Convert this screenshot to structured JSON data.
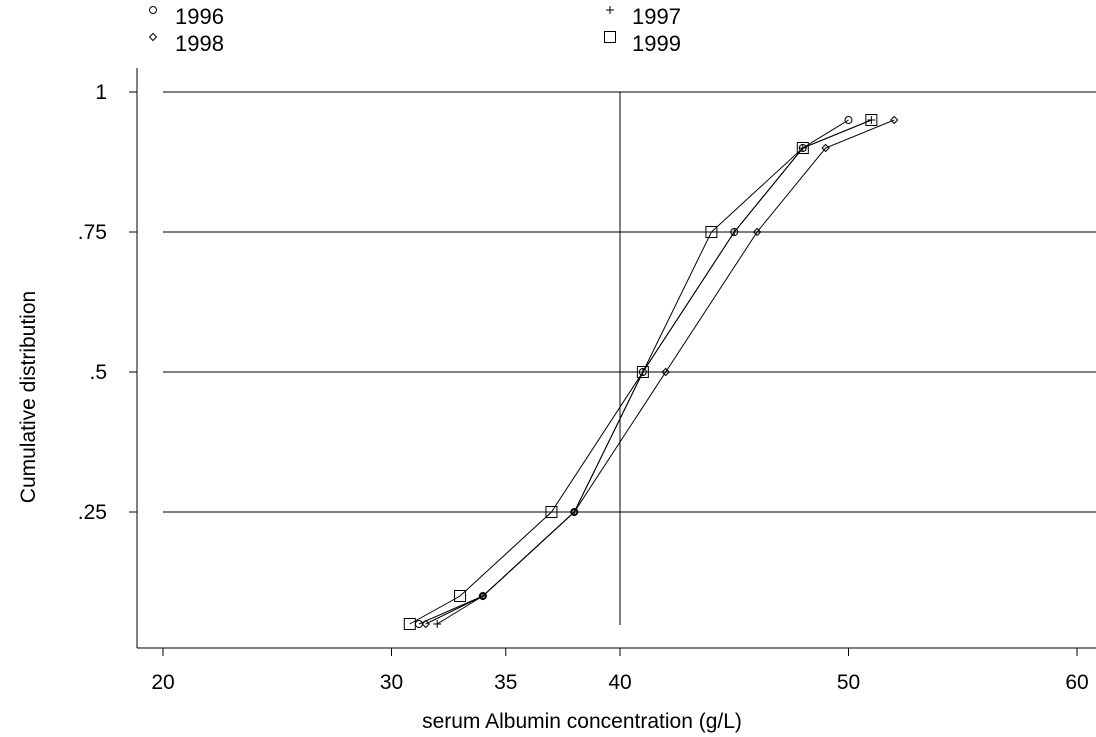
{
  "chart_data": {
    "type": "line",
    "title": "",
    "xlabel": "serum Albumin concentration (g/L)",
    "ylabel": "Cumulative distribution",
    "xlim": [
      20,
      60
    ],
    "ylim": [
      0.0,
      1.0
    ],
    "x_ticks": [
      {
        "value": 20,
        "label": "20"
      },
      {
        "value": 30,
        "label": "30"
      },
      {
        "value": 35,
        "label": "35"
      },
      {
        "value": 40,
        "label": "40"
      },
      {
        "value": 50,
        "label": "50"
      },
      {
        "value": 60,
        "label": "60"
      }
    ],
    "y_ticks": [
      {
        "value": 0.25,
        "label": ".25"
      },
      {
        "value": 0.5,
        "label": ".5"
      },
      {
        "value": 0.75,
        "label": ".75"
      },
      {
        "value": 1.0,
        "label": "1"
      }
    ],
    "grid": "horizontal",
    "reference_line_x": 40,
    "legend_position": "top",
    "series": [
      {
        "name": "1996",
        "marker": "circle",
        "points": [
          [
            31.2,
            0.05
          ],
          [
            34,
            0.1
          ],
          [
            38,
            0.25
          ],
          [
            41,
            0.5
          ],
          [
            45,
            0.75
          ],
          [
            48,
            0.9
          ],
          [
            50,
            0.95
          ]
        ]
      },
      {
        "name": "1997",
        "marker": "plus",
        "points": [
          [
            32,
            0.05
          ],
          [
            34,
            0.1
          ],
          [
            38,
            0.25
          ],
          [
            41,
            0.5
          ],
          [
            45,
            0.75
          ],
          [
            48,
            0.9
          ],
          [
            51,
            0.95
          ]
        ]
      },
      {
        "name": "1998",
        "marker": "diamond",
        "points": [
          [
            31.5,
            0.05
          ],
          [
            34,
            0.1
          ],
          [
            38,
            0.25
          ],
          [
            42,
            0.5
          ],
          [
            46,
            0.75
          ],
          [
            49,
            0.9
          ],
          [
            52,
            0.95
          ]
        ]
      },
      {
        "name": "1999",
        "marker": "square",
        "points": [
          [
            30.8,
            0.05
          ],
          [
            33,
            0.1
          ],
          [
            37,
            0.25
          ],
          [
            41,
            0.5
          ],
          [
            44,
            0.75
          ],
          [
            48,
            0.9
          ],
          [
            51,
            0.95
          ]
        ]
      }
    ]
  }
}
